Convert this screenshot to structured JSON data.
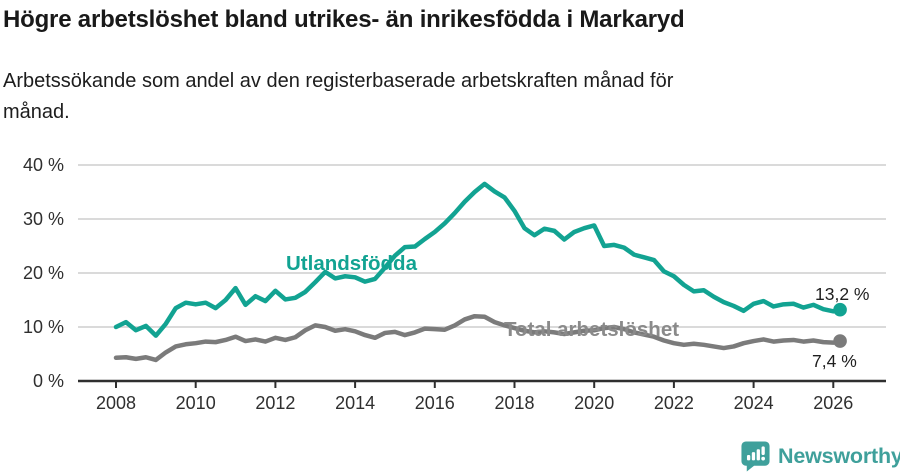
{
  "colors": {
    "grid": "#DADADA",
    "axis": "#2F2F2F",
    "text": "#1D1D1D",
    "accent_teal": "#12A392",
    "series_total_line": "#7B7B7B",
    "series_total_label": "#8A8A8A",
    "logo_teal": "#3FA09B"
  },
  "footer": {
    "brand": "Newsworthy"
  },
  "chart_data": {
    "type": "line",
    "title": "Högre arbetslöshet bland utrikes- än inrikesfödda i Markaryd",
    "subtitle_line1": "Arbetssökande som andel av den registerbaserade arbetskraften månad för",
    "subtitle_line2": "månad.",
    "xlabel": "",
    "ylabel": "",
    "ylim": [
      0,
      40
    ],
    "xlim": [
      2007,
      2027.3
    ],
    "grid": true,
    "legend": "inline-labels",
    "y_ticks": [
      {
        "value": 0,
        "label": "0 %"
      },
      {
        "value": 10,
        "label": "10 %"
      },
      {
        "value": 20,
        "label": "20 %"
      },
      {
        "value": 30,
        "label": "30 %"
      },
      {
        "value": 40,
        "label": "40 %"
      }
    ],
    "x_ticks": [
      {
        "value": 2008,
        "label": "2008"
      },
      {
        "value": 2010,
        "label": "2010"
      },
      {
        "value": 2012,
        "label": "2012"
      },
      {
        "value": 2014,
        "label": "2014"
      },
      {
        "value": 2016,
        "label": "2016"
      },
      {
        "value": 2018,
        "label": "2018"
      },
      {
        "value": 2020,
        "label": "2020"
      },
      {
        "value": 2022,
        "label": "2022"
      },
      {
        "value": 2024,
        "label": "2024"
      },
      {
        "value": 2026,
        "label": "2026"
      }
    ],
    "series": [
      {
        "name": "Utlandsfödda",
        "color": "#12A392",
        "end_label": "13,2 %",
        "end_value": 13.2,
        "x": [
          2008.0,
          2008.25,
          2008.5,
          2008.75,
          2009.0,
          2009.25,
          2009.5,
          2009.75,
          2010.0,
          2010.25,
          2010.5,
          2010.75,
          2011.0,
          2011.25,
          2011.5,
          2011.75,
          2012.0,
          2012.25,
          2012.5,
          2012.75,
          2013.0,
          2013.25,
          2013.5,
          2013.75,
          2014.0,
          2014.25,
          2014.5,
          2014.75,
          2015.0,
          2015.25,
          2015.5,
          2015.75,
          2016.0,
          2016.25,
          2016.5,
          2016.75,
          2017.0,
          2017.25,
          2017.5,
          2017.75,
          2018.0,
          2018.25,
          2018.5,
          2018.75,
          2019.0,
          2019.25,
          2019.5,
          2019.75,
          2020.0,
          2020.25,
          2020.5,
          2020.75,
          2021.0,
          2021.25,
          2021.5,
          2021.75,
          2022.0,
          2022.25,
          2022.5,
          2022.75,
          2023.0,
          2023.25,
          2023.5,
          2023.75,
          2024.0,
          2024.25,
          2024.5,
          2024.75,
          2025.0,
          2025.25,
          2025.5,
          2025.75,
          2026.0,
          2026.17
        ],
        "values": [
          10.0,
          10.9,
          9.4,
          10.2,
          8.4,
          10.6,
          13.5,
          14.5,
          14.2,
          14.5,
          13.5,
          15.0,
          17.2,
          14.1,
          15.7,
          14.8,
          16.7,
          15.1,
          15.4,
          16.5,
          18.3,
          20.2,
          19.0,
          19.4,
          19.2,
          18.4,
          18.9,
          21.0,
          23.2,
          24.8,
          24.9,
          26.3,
          27.6,
          29.2,
          31.1,
          33.2,
          35.0,
          36.5,
          35.1,
          34.0,
          31.5,
          28.3,
          27.0,
          28.2,
          27.8,
          26.2,
          27.6,
          28.3,
          28.8,
          25.0,
          25.2,
          24.7,
          23.4,
          22.9,
          22.4,
          20.3,
          19.4,
          17.8,
          16.6,
          16.8,
          15.6,
          14.6,
          13.9,
          13.0,
          14.3,
          14.8,
          13.8,
          14.2,
          14.3,
          13.6,
          14.1,
          13.3,
          12.9,
          13.2
        ]
      },
      {
        "name": "Total arbetslöshet",
        "color": "#7B7B7B",
        "end_label": "7,4 %",
        "end_value": 7.4,
        "x": [
          2008.0,
          2008.25,
          2008.5,
          2008.75,
          2009.0,
          2009.25,
          2009.5,
          2009.75,
          2010.0,
          2010.25,
          2010.5,
          2010.75,
          2011.0,
          2011.25,
          2011.5,
          2011.75,
          2012.0,
          2012.25,
          2012.5,
          2012.75,
          2013.0,
          2013.25,
          2013.5,
          2013.75,
          2014.0,
          2014.25,
          2014.5,
          2014.75,
          2015.0,
          2015.25,
          2015.5,
          2015.75,
          2016.0,
          2016.25,
          2016.5,
          2016.75,
          2017.0,
          2017.25,
          2017.5,
          2017.75,
          2018.0,
          2018.25,
          2018.5,
          2018.75,
          2019.0,
          2019.25,
          2019.5,
          2019.75,
          2020.0,
          2020.25,
          2020.5,
          2020.75,
          2021.0,
          2021.25,
          2021.5,
          2021.75,
          2022.0,
          2022.25,
          2022.5,
          2022.75,
          2023.0,
          2023.25,
          2023.5,
          2023.75,
          2024.0,
          2024.25,
          2024.5,
          2024.75,
          2025.0,
          2025.25,
          2025.5,
          2025.75,
          2026.0,
          2026.17
        ],
        "values": [
          4.3,
          4.4,
          4.1,
          4.4,
          3.9,
          5.3,
          6.4,
          6.8,
          7.0,
          7.3,
          7.2,
          7.6,
          8.2,
          7.4,
          7.7,
          7.3,
          8.0,
          7.6,
          8.1,
          9.4,
          10.3,
          10.0,
          9.3,
          9.6,
          9.2,
          8.5,
          8.0,
          8.9,
          9.1,
          8.5,
          9.0,
          9.7,
          9.6,
          9.5,
          10.3,
          11.4,
          12.0,
          11.9,
          10.9,
          10.3,
          9.8,
          9.3,
          9.0,
          9.2,
          9.0,
          8.7,
          9.0,
          9.3,
          9.4,
          9.8,
          10.0,
          9.6,
          9.0,
          8.6,
          8.2,
          7.5,
          7.0,
          6.7,
          6.9,
          6.7,
          6.4,
          6.1,
          6.4,
          7.0,
          7.4,
          7.7,
          7.3,
          7.5,
          7.6,
          7.3,
          7.5,
          7.2,
          7.1,
          7.4
        ]
      }
    ]
  }
}
